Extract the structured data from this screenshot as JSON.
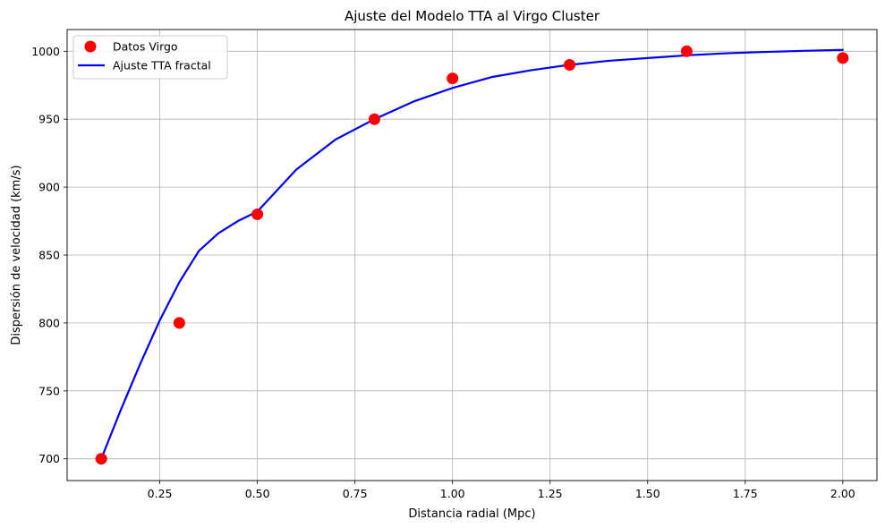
{
  "chart_data": {
    "type": "scatter",
    "title": "Ajuste del Modelo TTA al Virgo Cluster",
    "xlabel": "Distancia radial (Mpc)",
    "ylabel": "Dispersión de velocidad (km/s)",
    "xlim": [
      0.0125,
      2.0875
    ],
    "ylim": [
      684,
      1016
    ],
    "xticks": [
      0.25,
      0.5,
      0.75,
      1.0,
      1.25,
      1.5,
      1.75,
      2.0
    ],
    "xtick_labels": [
      "0.25",
      "0.50",
      "0.75",
      "1.00",
      "1.25",
      "1.50",
      "1.75",
      "2.00"
    ],
    "yticks": [
      700,
      750,
      800,
      850,
      900,
      950,
      1000
    ],
    "ytick_labels": [
      "700",
      "750",
      "800",
      "850",
      "900",
      "950",
      "1000"
    ],
    "grid": true,
    "legend_position": "top-left",
    "series": [
      {
        "name": "Datos Virgo",
        "kind": "scatter",
        "color": "#ff0000",
        "x": [
          0.1,
          0.3,
          0.5,
          0.8,
          1.0,
          1.3,
          1.6,
          2.0
        ],
        "y": [
          700,
          800,
          880,
          950,
          980,
          990,
          1000,
          995
        ]
      },
      {
        "name": "Ajuste TTA fractal",
        "kind": "line",
        "color": "#0000ff",
        "x": [
          0.1,
          0.15,
          0.2,
          0.25,
          0.3,
          0.35,
          0.4,
          0.45,
          0.5,
          0.6,
          0.7,
          0.8,
          0.9,
          1.0,
          1.1,
          1.2,
          1.3,
          1.4,
          1.5,
          1.6,
          1.7,
          1.8,
          1.9,
          2.0
        ],
        "y": [
          700,
          736,
          770,
          802,
          830,
          853,
          866,
          875,
          882,
          913,
          935,
          950,
          963,
          973,
          981,
          986,
          990,
          993,
          995,
          997,
          998.5,
          999.5,
          1000.3,
          1001
        ]
      }
    ]
  }
}
